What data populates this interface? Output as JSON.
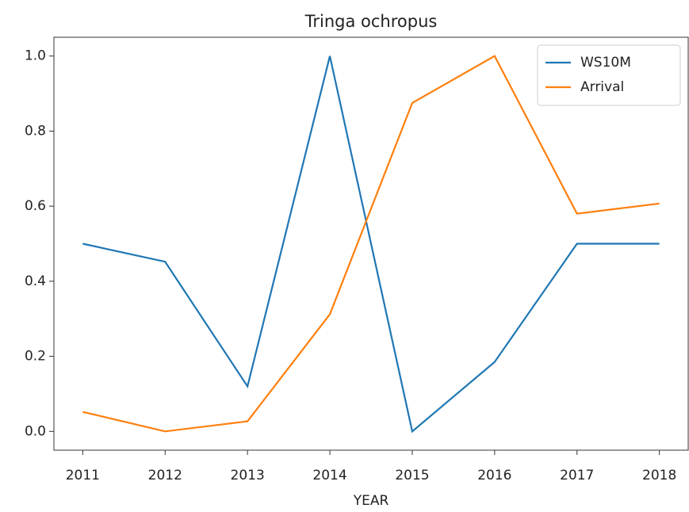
{
  "chart_data": {
    "type": "line",
    "title": "Tringa ochropus",
    "xlabel": "YEAR",
    "x": [
      2011,
      2012,
      2013,
      2014,
      2015,
      2016,
      2017,
      2018
    ],
    "series": [
      {
        "name": "WS10M",
        "color": "#1f77b4",
        "values": [
          0.5,
          0.452,
          0.12,
          1.0,
          0.0,
          0.185,
          0.5,
          0.5
        ]
      },
      {
        "name": "Arrival",
        "color": "#ff7f0e",
        "values": [
          0.052,
          0.0,
          0.027,
          0.312,
          0.875,
          1.0,
          0.58,
          0.607
        ]
      }
    ],
    "xlim": [
      2010.65,
      2018.35
    ],
    "xticks": [
      2011,
      2012,
      2013,
      2014,
      2015,
      2016,
      2017,
      2018
    ],
    "ylim": [
      -0.05,
      1.05
    ],
    "yticks": [
      {
        "value": 0,
        "label": "0.0"
      },
      0.2,
      0.4,
      0.6,
      0.8,
      {
        "value": 1,
        "label": "1.0"
      }
    ],
    "grid": false,
    "legend": "upper right"
  }
}
